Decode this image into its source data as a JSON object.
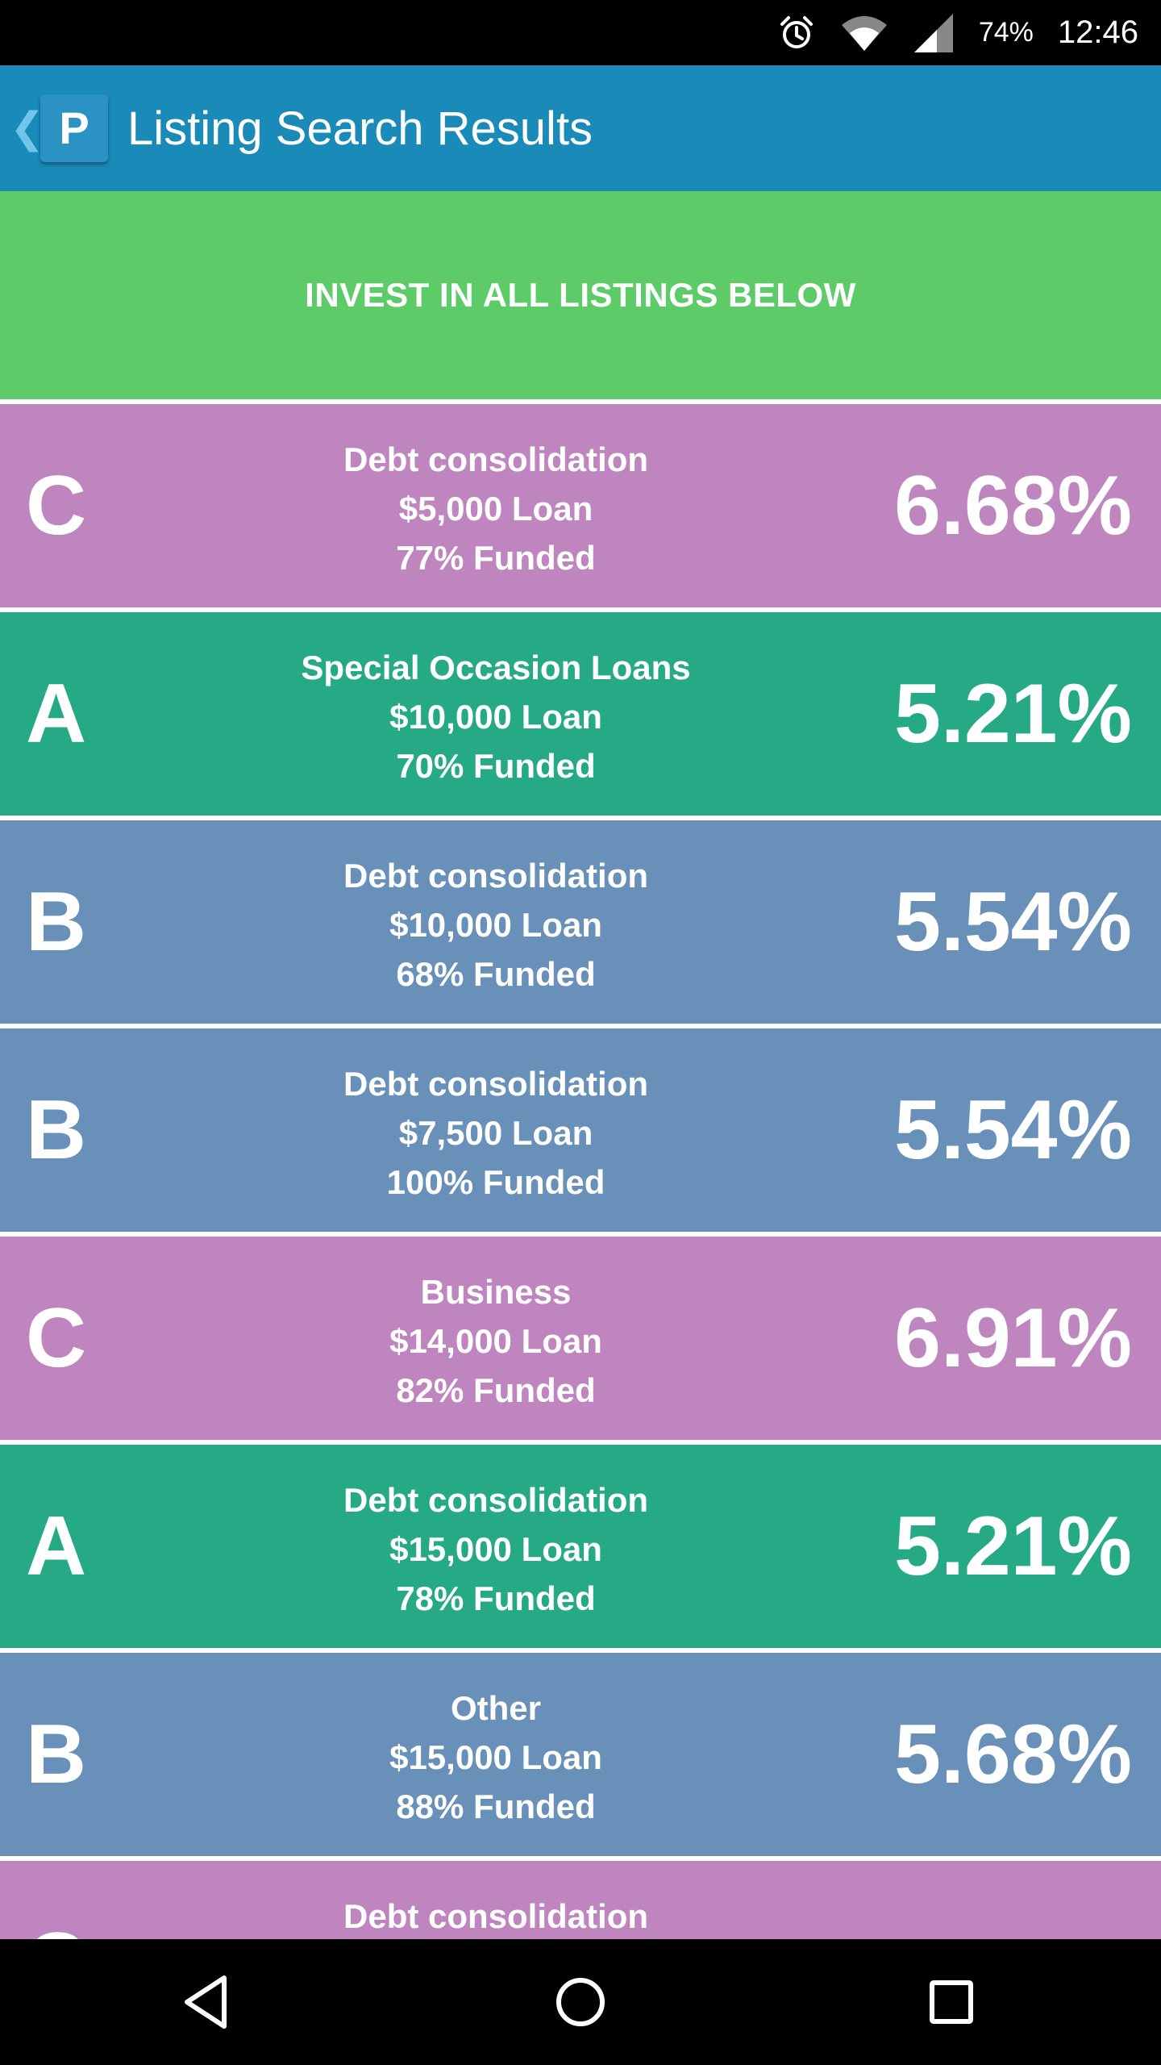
{
  "status_bar": {
    "battery": "74%",
    "time": "12:46",
    "icons": [
      "alarm-icon",
      "wifi-icon",
      "cell-signal-icon"
    ]
  },
  "app_bar": {
    "back_icon": "chevron-left-icon",
    "logo_letter": "P",
    "title": "Listing Search Results",
    "color": "#1a8ab8"
  },
  "invest_all": {
    "label": "INVEST IN ALL LISTINGS BELOW",
    "color": "#5ecb69"
  },
  "grade_colors": {
    "A": "#26a985",
    "B": "#6890b9",
    "C": "#be85bf"
  },
  "listings": [
    {
      "grade": "C",
      "purpose": "Debt consolidation",
      "amount": "$5,000 Loan",
      "funded": "77% Funded",
      "rate": "6.68%"
    },
    {
      "grade": "A",
      "purpose": "Special Occasion Loans",
      "amount": "$10,000 Loan",
      "funded": "70% Funded",
      "rate": "5.21%"
    },
    {
      "grade": "B",
      "purpose": "Debt consolidation",
      "amount": "$10,000 Loan",
      "funded": "68% Funded",
      "rate": "5.54%"
    },
    {
      "grade": "B",
      "purpose": "Debt consolidation",
      "amount": "$7,500 Loan",
      "funded": "100% Funded",
      "rate": "5.54%"
    },
    {
      "grade": "C",
      "purpose": "Business",
      "amount": "$14,000 Loan",
      "funded": "82% Funded",
      "rate": "6.91%"
    },
    {
      "grade": "A",
      "purpose": "Debt consolidation",
      "amount": "$15,000 Loan",
      "funded": "78% Funded",
      "rate": "5.21%"
    },
    {
      "grade": "B",
      "purpose": "Other",
      "amount": "$15,000 Loan",
      "funded": "88% Funded",
      "rate": "5.68%"
    },
    {
      "grade": "C",
      "purpose": "Debt consolidation",
      "amount": "",
      "funded": "",
      "rate": ""
    }
  ],
  "nav_bar": {
    "buttons": [
      "back-triangle-icon",
      "home-circle-icon",
      "recents-square-icon"
    ]
  }
}
